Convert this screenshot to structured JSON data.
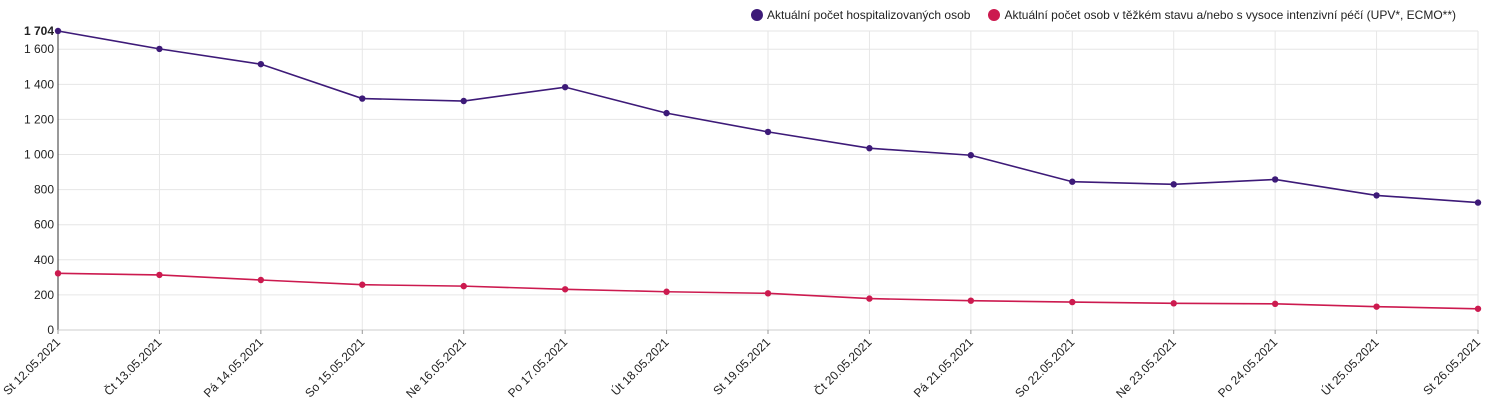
{
  "chart_data": {
    "type": "line",
    "categories": [
      "St 12.05.2021",
      "Čt 13.05.2021",
      "Pá 14.05.2021",
      "So 15.05.2021",
      "Ne 16.05.2021",
      "Po 17.05.2021",
      "Út 18.05.2021",
      "St 19.05.2021",
      "Čt 20.05.2021",
      "Pá 21.05.2021",
      "So 22.05.2021",
      "Ne 23.05.2021",
      "Po 24.05.2021",
      "Út 25.05.2021",
      "St 26.05.2021"
    ],
    "series": [
      {
        "name": "Aktuální počet hospitalizovaných osob",
        "color": "#3d1a78",
        "values": [
          1704,
          1602,
          1515,
          1319,
          1305,
          1384,
          1236,
          1129,
          1036,
          996,
          845,
          830,
          858,
          767,
          726
        ]
      },
      {
        "name": "Aktuální počet osob v těžkém stavu a/nebo s vysoce intenzivní péčí (UPV*, ECMO**)",
        "color": "#cc1a4f",
        "values": [
          323,
          314,
          285,
          258,
          250,
          232,
          218,
          209,
          179,
          167,
          159,
          152,
          149,
          133,
          121
        ]
      }
    ],
    "yticks": [
      0,
      200,
      400,
      600,
      800,
      1000,
      1200,
      1400,
      1600
    ],
    "ytick_labels": [
      "0",
      "200",
      "400",
      "600",
      "800",
      "1 000",
      "1 200",
      "1 400",
      "1 600"
    ],
    "ymax_label": "1 704",
    "ylim": [
      0,
      1704
    ],
    "grid": true,
    "legend_position": "top-right"
  }
}
